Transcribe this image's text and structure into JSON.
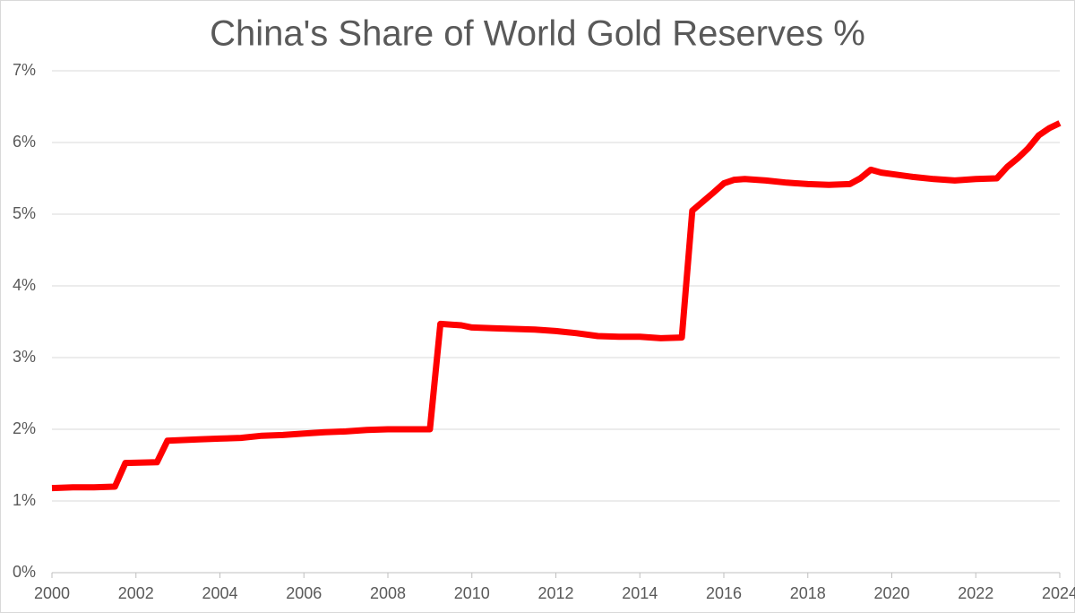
{
  "chart_data": {
    "type": "line",
    "title": "China's Share of World Gold Reserves %",
    "x": [
      2000,
      2000.5,
      2001,
      2001.5,
      2001.75,
      2002.5,
      2002.75,
      2003.5,
      2004,
      2004.5,
      2005,
      2005.5,
      2006,
      2006.5,
      2007,
      2007.5,
      2008,
      2008.5,
      2009,
      2009.25,
      2009.75,
      2010,
      2010.5,
      2011,
      2011.5,
      2012,
      2012.5,
      2013,
      2013.5,
      2014,
      2014.5,
      2015,
      2015.25,
      2015.75,
      2016,
      2016.25,
      2016.5,
      2017,
      2017.5,
      2018,
      2018.5,
      2019,
      2019.25,
      2019.5,
      2019.75,
      2020,
      2020.5,
      2021,
      2021.5,
      2022,
      2022.5,
      2022.75,
      2023,
      2023.25,
      2023.5,
      2023.75,
      2024
    ],
    "values": [
      1.18,
      1.19,
      1.19,
      1.2,
      1.53,
      1.54,
      1.84,
      1.86,
      1.87,
      1.88,
      1.91,
      1.92,
      1.94,
      1.96,
      1.97,
      1.99,
      2.0,
      2.0,
      2.0,
      3.47,
      3.45,
      3.42,
      3.41,
      3.4,
      3.39,
      3.37,
      3.34,
      3.3,
      3.29,
      3.29,
      3.27,
      3.28,
      5.05,
      5.3,
      5.43,
      5.48,
      5.49,
      5.47,
      5.44,
      5.42,
      5.41,
      5.42,
      5.5,
      5.62,
      5.58,
      5.56,
      5.52,
      5.49,
      5.47,
      5.49,
      5.5,
      5.66,
      5.78,
      5.92,
      6.1,
      6.2,
      6.27
    ],
    "color": "#ff0000",
    "xlim": [
      2000,
      2024
    ],
    "xticks": [
      2000,
      2002,
      2004,
      2006,
      2008,
      2010,
      2012,
      2014,
      2016,
      2018,
      2020,
      2022,
      2024
    ],
    "ylim": [
      0,
      7
    ],
    "yticks": [
      {
        "value": 0,
        "label": "0%"
      },
      {
        "value": 1,
        "label": "1%"
      },
      {
        "value": 2,
        "label": "2%"
      },
      {
        "value": 3,
        "label": "3%"
      },
      {
        "value": 4,
        "label": "4%"
      },
      {
        "value": 5,
        "label": "5%"
      },
      {
        "value": 6,
        "label": "6%"
      },
      {
        "value": 7,
        "label": "7%"
      }
    ],
    "grid": true
  }
}
